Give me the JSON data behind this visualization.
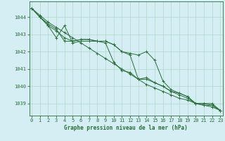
{
  "title": "Graphe pression niveau de la mer (hPa)",
  "background_color": "#d4eef4",
  "plot_bg_color": "#d4eef4",
  "grid_color": "#b0d8c8",
  "line_color": "#2a6e3a",
  "x_ticks": [
    0,
    1,
    2,
    3,
    4,
    5,
    6,
    7,
    8,
    9,
    10,
    11,
    12,
    13,
    14,
    15,
    16,
    17,
    18,
    19,
    20,
    21,
    22,
    23
  ],
  "y_ticks": [
    1039,
    1040,
    1041,
    1042,
    1043,
    1044
  ],
  "ylim": [
    1038.3,
    1044.9
  ],
  "xlim": [
    -0.3,
    23.3
  ],
  "series": [
    [
      1044.5,
      1044.1,
      1043.7,
      1043.4,
      1043.1,
      1042.8,
      1042.5,
      1042.2,
      1041.9,
      1041.6,
      1041.3,
      1041.0,
      1040.7,
      1040.4,
      1040.1,
      1039.9,
      1039.7,
      1039.5,
      1039.3,
      1039.2,
      1039.0,
      1038.9,
      1038.8,
      1038.6
    ],
    [
      1044.5,
      1044.0,
      1043.6,
      1043.3,
      1042.6,
      1042.6,
      1042.7,
      1042.7,
      1042.6,
      1042.6,
      1042.4,
      1042.0,
      1041.8,
      1040.4,
      1040.5,
      1040.2,
      1040.0,
      1039.7,
      1039.6,
      1039.4,
      1039.0,
      1039.0,
      1038.9,
      1038.6
    ],
    [
      1044.5,
      1044.0,
      1043.5,
      1043.2,
      1042.8,
      1042.6,
      1042.7,
      1042.7,
      1042.6,
      1042.5,
      1041.4,
      1040.9,
      1040.8,
      1040.4,
      1040.4,
      1040.2,
      1040.0,
      1039.7,
      1039.5,
      1039.3,
      1039.0,
      1038.9,
      1038.9,
      1038.6
    ],
    [
      1044.5,
      1044.0,
      1043.5,
      1042.8,
      1043.5,
      1042.5,
      1042.6,
      1042.6,
      1042.6,
      1042.6,
      1042.4,
      1042.0,
      1041.9,
      1041.8,
      1042.0,
      1041.5,
      1040.3,
      1039.8,
      1039.6,
      1039.4,
      1039.0,
      1039.0,
      1039.0,
      1038.6
    ]
  ]
}
